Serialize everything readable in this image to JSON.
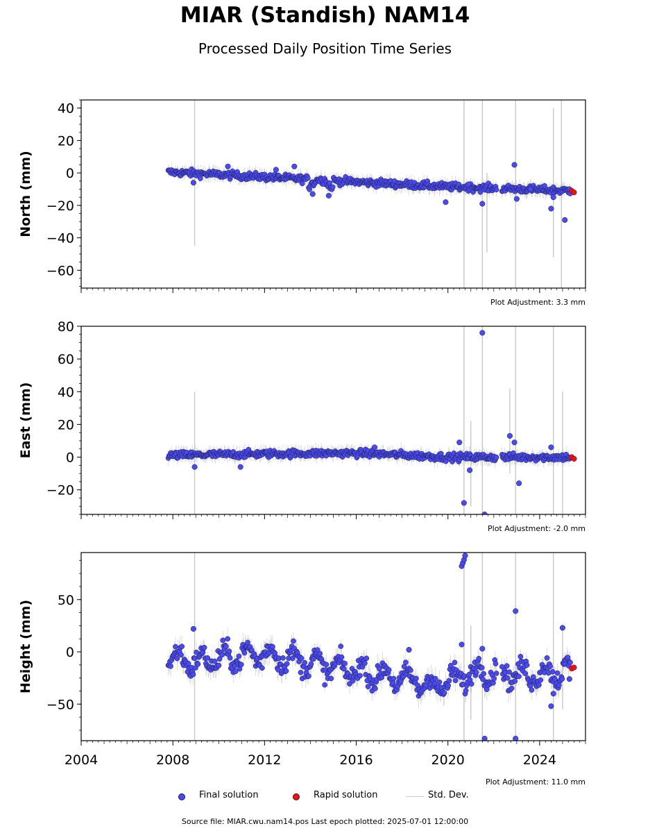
{
  "title": "MIAR (Standish) NAM14",
  "subtitle": "Processed Daily Position Time Series",
  "footer": {
    "source_text": "Source file: MIAR.cwu.nam14.pos  Last epoch plotted: 2025-07-01 12:00:00"
  },
  "legend": {
    "final_label": "Final solution",
    "rapid_label": "Rapid solution",
    "stddev_label": "Std. Dev."
  },
  "colors": {
    "final": "#4a4af0",
    "final_edge": "#1a1a40",
    "rapid": "#e8141c",
    "stddev": "#c8c8c8"
  },
  "chart_data": [
    {
      "type": "scatter",
      "component": "north",
      "ylabel": "North (mm)",
      "adjustment_text": "Plot Adjustment: 3.3 mm",
      "xlim": [
        2004,
        2026
      ],
      "ylim": [
        -71,
        45
      ],
      "yticks": [
        40,
        20,
        0,
        -20,
        -40,
        -60
      ],
      "ytick_labels": [
        "40",
        "20",
        "0",
        "−20",
        "−40",
        "−60"
      ],
      "trend": [
        [
          2007.8,
          0.5
        ],
        [
          2010,
          -1
        ],
        [
          2014,
          -4
        ],
        [
          2018,
          -7
        ],
        [
          2020,
          -8.5
        ],
        [
          2022.3,
          -9.5
        ],
        [
          2025.3,
          -11
        ]
      ],
      "series": [
        {
          "name": "Final solution",
          "x": [
            2008.9,
            2010.4,
            2012.5,
            2013.3,
            2014.1,
            2014.8,
            2019.9,
            2020.9,
            2021.5,
            2022.9,
            2023.0,
            2023.6,
            2024.5,
            2024.6,
            2025.1,
            2025.3
          ],
          "y": [
            -6,
            4,
            2,
            4,
            -13,
            -14,
            -18,
            -7,
            -19,
            5,
            -16,
            -10,
            -22,
            -15,
            -29,
            -10
          ]
        },
        {
          "name": "Rapid solution",
          "x": [
            2025.4,
            2025.5
          ],
          "y": [
            -11,
            -12
          ]
        }
      ],
      "error_bars": [
        {
          "x": 2008.95,
          "y_low": -45,
          "y_high": 45
        },
        {
          "x": 2020.7,
          "y_low": -71,
          "y_high": 45
        },
        {
          "x": 2021.5,
          "y_low": -71,
          "y_high": 45
        },
        {
          "x": 2021.7,
          "y_low": -49,
          "y_high": 0
        },
        {
          "x": 2022.95,
          "y_low": -71,
          "y_high": 45
        },
        {
          "x": 2024.6,
          "y_low": -52,
          "y_high": 40
        },
        {
          "x": 2024.95,
          "y_low": -71,
          "y_high": 45
        }
      ]
    },
    {
      "type": "scatter",
      "component": "east",
      "ylabel": "East (mm)",
      "adjustment_text": "Plot Adjustment: -2.0 mm",
      "xlim": [
        2004,
        2026
      ],
      "ylim": [
        -35,
        80
      ],
      "yticks": [
        80,
        60,
        40,
        20,
        0,
        -20
      ],
      "ytick_labels": [
        "80",
        "60",
        "40",
        "20",
        "0",
        "−20"
      ],
      "trend": [
        [
          2007.8,
          1
        ],
        [
          2012,
          2
        ],
        [
          2015.5,
          2.5
        ],
        [
          2017,
          2
        ],
        [
          2020,
          0
        ],
        [
          2022.3,
          0
        ],
        [
          2025.3,
          0
        ]
      ],
      "series": [
        {
          "name": "Final solution",
          "x": [
            2008.95,
            2010.95,
            2016.8,
            2020.5,
            2020.7,
            2020.95,
            2021.5,
            2021.6,
            2022.7,
            2022.9,
            2023.1,
            2024.5
          ],
          "y": [
            -6,
            -6,
            6,
            9,
            -28,
            -8,
            76,
            -35,
            13,
            9,
            -16,
            6
          ]
        },
        {
          "name": "Rapid solution",
          "x": [
            2025.4,
            2025.5
          ],
          "y": [
            0,
            -1
          ]
        }
      ],
      "error_bars": [
        {
          "x": 2008.95,
          "y_low": -35,
          "y_high": 40
        },
        {
          "x": 2020.7,
          "y_low": -35,
          "y_high": 80
        },
        {
          "x": 2021.0,
          "y_low": -30,
          "y_high": 22
        },
        {
          "x": 2021.5,
          "y_low": -35,
          "y_high": 80
        },
        {
          "x": 2022.7,
          "y_low": -10,
          "y_high": 42
        },
        {
          "x": 2022.95,
          "y_low": -35,
          "y_high": 80
        },
        {
          "x": 2024.6,
          "y_low": -35,
          "y_high": 80
        },
        {
          "x": 2025.0,
          "y_low": -35,
          "y_high": 40
        }
      ]
    },
    {
      "type": "scatter",
      "component": "height",
      "ylabel": "Height (mm)",
      "adjustment_text": "Plot Adjustment: 11.0 mm",
      "xlim": [
        2004,
        2026
      ],
      "ylim": [
        -85,
        95
      ],
      "yticks": [
        50,
        0,
        -50
      ],
      "ytick_labels": [
        "50",
        "0",
        "−50"
      ],
      "xticks": [
        2004,
        2008,
        2012,
        2016,
        2020,
        2024
      ],
      "xtick_labels": [
        "2004",
        "2008",
        "2012",
        "2016",
        "2020",
        "2024"
      ],
      "trend": [
        [
          2007.8,
          -5
        ],
        [
          2009,
          -10
        ],
        [
          2010.5,
          -5
        ],
        [
          2012,
          -2
        ],
        [
          2013.5,
          -8
        ],
        [
          2015,
          -15
        ],
        [
          2017,
          -22
        ],
        [
          2018.5,
          -28
        ],
        [
          2019.5,
          -33
        ],
        [
          2020.5,
          -25
        ],
        [
          2021.5,
          -18
        ],
        [
          2022.3,
          -20
        ],
        [
          2023.5,
          -22
        ],
        [
          2025.3,
          -18
        ]
      ],
      "series": [
        {
          "name": "Final solution",
          "x": [
            2008.9,
            2018.3,
            2020.6,
            2020.65,
            2020.7,
            2020.75,
            2020.6,
            2021.5,
            2021.6,
            2022.95,
            2022.95,
            2024.5,
            2024.6,
            2025.0,
            2025.3
          ],
          "y": [
            22,
            2,
            82,
            85,
            88,
            92,
            7,
            3,
            -83,
            39,
            -83,
            -52,
            -40,
            23,
            -26
          ]
        },
        {
          "name": "Rapid solution",
          "x": [
            2025.4,
            2025.5
          ],
          "y": [
            -16,
            -15
          ]
        }
      ],
      "error_bars": [
        {
          "x": 2008.95,
          "y_low": -85,
          "y_high": 95
        },
        {
          "x": 2020.7,
          "y_low": -85,
          "y_high": 95
        },
        {
          "x": 2021.0,
          "y_low": -65,
          "y_high": 25
        },
        {
          "x": 2021.5,
          "y_low": -85,
          "y_high": 95
        },
        {
          "x": 2022.95,
          "y_low": -85,
          "y_high": 95
        },
        {
          "x": 2024.6,
          "y_low": -85,
          "y_high": 95
        },
        {
          "x": 2025.0,
          "y_low": -55,
          "y_high": 25
        }
      ]
    }
  ]
}
